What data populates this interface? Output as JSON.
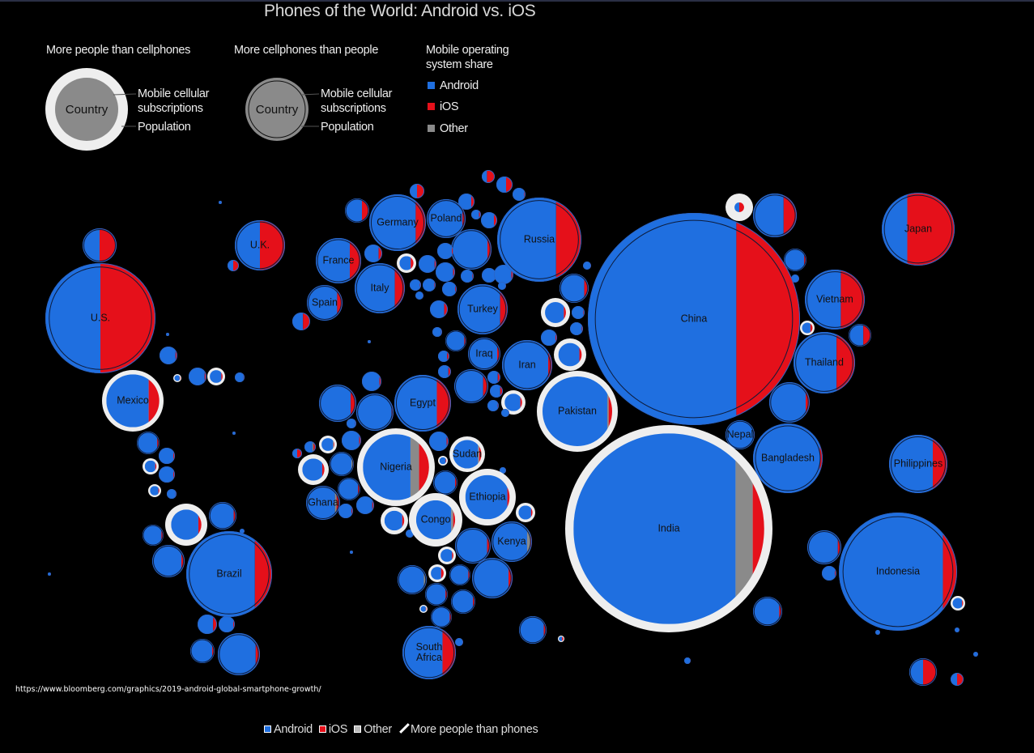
{
  "title": "Phones of the World: Android vs. iOS",
  "legend": {
    "people_more": {
      "heading": "More people than cellphones",
      "sample": "Country",
      "outer_label": "Mobile cellular subscriptions",
      "inner_label": "Population"
    },
    "phones_more": {
      "heading": "More cellphones than people",
      "sample": "Country",
      "outer_label": "Mobile cellular subscriptions",
      "inner_label": "Population"
    },
    "os": {
      "heading_1": "Mobile operating",
      "heading_2": "system share",
      "android": "Android",
      "ios": "iOS",
      "other": "Other"
    }
  },
  "colors": {
    "android": "#1f6fe0",
    "ios": "#e5101a",
    "other": "#8a8a8a",
    "ring": "#eeeeee",
    "background": "#000000"
  },
  "source": "https://www.bloomberg.com/graphics/2019-android-global-smartphone-growth/",
  "bottom_legend": {
    "android": "Android",
    "ios": "iOS",
    "other": "Other",
    "people": "More people than phones"
  },
  "chart_data": {
    "type": "bubble-map",
    "title": "Phones of the World: Android vs. iOS",
    "countries": [
      {
        "name": "U.S.",
        "android": 0.5,
        "ios": 0.5,
        "other": 0,
        "more_people_than_phones": false
      },
      {
        "name": "U.K.",
        "android": 0.5,
        "ios": 0.5,
        "other": 0,
        "more_people_than_phones": false
      },
      {
        "name": "Mexico",
        "android": 0.8,
        "ios": 0.2,
        "other": 0,
        "more_people_than_phones": true
      },
      {
        "name": "Brazil",
        "android": 0.8,
        "ios": 0.2,
        "other": 0,
        "more_people_than_phones": false
      },
      {
        "name": "Germany",
        "android": 0.82,
        "ios": 0.18,
        "other": 0,
        "more_people_than_phones": false
      },
      {
        "name": "Poland",
        "android": 0.92,
        "ios": 0.08,
        "other": 0,
        "more_people_than_phones": false
      },
      {
        "name": "France",
        "android": 0.75,
        "ios": 0.25,
        "other": 0,
        "more_people_than_phones": false
      },
      {
        "name": "Spain",
        "android": 0.85,
        "ios": 0.15,
        "other": 0,
        "more_people_than_phones": false
      },
      {
        "name": "Italy",
        "android": 0.8,
        "ios": 0.2,
        "other": 0,
        "more_people_than_phones": false
      },
      {
        "name": "Russia",
        "android": 0.7,
        "ios": 0.3,
        "other": 0,
        "more_people_than_phones": false
      },
      {
        "name": "Turkey",
        "android": 0.85,
        "ios": 0.15,
        "other": 0,
        "more_people_than_phones": false
      },
      {
        "name": "Iraq",
        "android": 0.9,
        "ios": 0.1,
        "other": 0,
        "more_people_than_phones": false
      },
      {
        "name": "Iran",
        "android": 0.92,
        "ios": 0.08,
        "other": 0,
        "more_people_than_phones": false
      },
      {
        "name": "Egypt",
        "android": 0.75,
        "ios": 0.25,
        "other": 0,
        "more_people_than_phones": false
      },
      {
        "name": "Pakistan",
        "android": 0.93,
        "ios": 0.05,
        "other": 0.02,
        "more_people_than_phones": true
      },
      {
        "name": "China",
        "android": 0.7,
        "ios": 0.3,
        "other": 0,
        "more_people_than_phones": false
      },
      {
        "name": "Japan",
        "android": 0.35,
        "ios": 0.65,
        "other": 0,
        "more_people_than_phones": false
      },
      {
        "name": "Vietnam",
        "android": 0.6,
        "ios": 0.4,
        "other": 0,
        "more_people_than_phones": false
      },
      {
        "name": "Thailand",
        "android": 0.7,
        "ios": 0.3,
        "other": 0,
        "more_people_than_phones": false
      },
      {
        "name": "Nepal",
        "android": 0.97,
        "ios": 0.03,
        "other": 0,
        "more_people_than_phones": false
      },
      {
        "name": "Bangladesh",
        "android": 0.96,
        "ios": 0.04,
        "other": 0,
        "more_people_than_phones": false
      },
      {
        "name": "Philippines",
        "android": 0.75,
        "ios": 0.25,
        "other": 0,
        "more_people_than_phones": false
      },
      {
        "name": "India",
        "android": 0.85,
        "ios": 0.06,
        "other": 0.09,
        "more_people_than_phones": true
      },
      {
        "name": "Indonesia",
        "android": 0.88,
        "ios": 0.12,
        "other": 0,
        "more_people_than_phones": false
      },
      {
        "name": "Nigeria",
        "android": 0.72,
        "ios": 0.15,
        "other": 0.13,
        "more_people_than_phones": true
      },
      {
        "name": "Sudan",
        "android": 0.88,
        "ios": 0.08,
        "other": 0.04,
        "more_people_than_phones": true
      },
      {
        "name": "Ethiopia",
        "android": 0.95,
        "ios": 0.05,
        "other": 0,
        "more_people_than_phones": true
      },
      {
        "name": "Congo",
        "android": 0.9,
        "ios": 0.05,
        "other": 0.05,
        "more_people_than_phones": true
      },
      {
        "name": "Kenya",
        "android": 0.88,
        "ios": 0.04,
        "other": 0.08,
        "more_people_than_phones": false
      },
      {
        "name": "Ghana",
        "android": 0.85,
        "ios": 0.1,
        "other": 0.05,
        "more_people_than_phones": false
      },
      {
        "name": "South Africa",
        "android": 0.75,
        "ios": 0.25,
        "other": 0,
        "more_people_than_phones": false
      }
    ],
    "unlabeled": [
      [
        0.5,
        0.5,
        0,
        0
      ],
      [
        0.7,
        0.3,
        0,
        0
      ],
      [
        0.5,
        0.5,
        0,
        0
      ],
      [
        0.4,
        0.6,
        0,
        0
      ],
      [
        0.6,
        0.4,
        0,
        0
      ],
      [
        0.9,
        0.1,
        0,
        0
      ],
      [
        0.8,
        0.2,
        0,
        0
      ],
      [
        0.8,
        0.2,
        0,
        0
      ],
      [
        0.8,
        0.2,
        0,
        0
      ],
      [
        0.9,
        0.1,
        0,
        0
      ],
      [
        0.8,
        0.2,
        0,
        0
      ],
      [
        0.8,
        0.2,
        0,
        1
      ],
      [
        0.9,
        0.1,
        0,
        0
      ],
      [
        0.9,
        0.1,
        0,
        0
      ],
      [
        0.9,
        0.1,
        0,
        0
      ],
      [
        0.9,
        0.1,
        0,
        0
      ],
      [
        0.9,
        0.1,
        0,
        0
      ],
      [
        0.9,
        0.1,
        0,
        0
      ],
      [
        0.9,
        0.1,
        0,
        0
      ],
      [
        0.9,
        0.1,
        0,
        0
      ],
      [
        0.9,
        0.1,
        0,
        0
      ],
      [
        0.9,
        0.1,
        0,
        0
      ],
      [
        0.9,
        0.1,
        0,
        0
      ],
      [
        0.8,
        0.2,
        0,
        0
      ],
      [
        0.6,
        0.4,
        0,
        0
      ],
      [
        0.5,
        0.5,
        0,
        0
      ],
      [
        0.9,
        0.1,
        0,
        0
      ],
      [
        0.9,
        0.1,
        0,
        0
      ],
      [
        0.8,
        0.2,
        0,
        0
      ],
      [
        0.8,
        0.2,
        0,
        0
      ],
      [
        0.85,
        0.15,
        0,
        0
      ],
      [
        0.8,
        0.2,
        0,
        0
      ],
      [
        0.8,
        0.2,
        0,
        0
      ],
      [
        0.9,
        0.1,
        0,
        1
      ],
      [
        0.9,
        0.1,
        0,
        0
      ],
      [
        0.9,
        0.1,
        0,
        0
      ],
      [
        0.9,
        0.1,
        0,
        1
      ],
      [
        0.9,
        0.1,
        0,
        1
      ],
      [
        0.9,
        0.1,
        0,
        0
      ],
      [
        0.9,
        0.1,
        0,
        0
      ],
      [
        0.9,
        0.1,
        0,
        0
      ],
      [
        0.85,
        0.15,
        0,
        0
      ],
      [
        0.9,
        0.1,
        0,
        0
      ],
      [
        0.5,
        0.5,
        0,
        1
      ],
      [
        0.7,
        0.3,
        0,
        0
      ],
      [
        0.9,
        0.1,
        0,
        0
      ],
      [
        0.9,
        0.1,
        0,
        0
      ],
      [
        0.8,
        0.2,
        0,
        1
      ],
      [
        0.65,
        0.35,
        0,
        0
      ],
      [
        0.9,
        0.1,
        0,
        0
      ],
      [
        0.85,
        0.15,
        0,
        0
      ],
      [
        0.95,
        0.05,
        0,
        0
      ],
      [
        0.9,
        0.1,
        0,
        0
      ],
      [
        0.9,
        0.1,
        0,
        0
      ],
      [
        0.9,
        0.1,
        0,
        0
      ],
      [
        0.9,
        0.1,
        0,
        1
      ],
      [
        0.7,
        0.2,
        0.1,
        0
      ],
      [
        0.9,
        0.05,
        0.05,
        1
      ],
      [
        0.9,
        0.1,
        0,
        1
      ],
      [
        0.9,
        0.05,
        0.05,
        0
      ],
      [
        0.9,
        0.1,
        0,
        0
      ],
      [
        0.9,
        0,
        0.1,
        0
      ],
      [
        0.9,
        0.1,
        0,
        0
      ],
      [
        0.9,
        0.1,
        0,
        0
      ],
      [
        0.9,
        0.1,
        0,
        0
      ],
      [
        0.9,
        0.1,
        0,
        1
      ],
      [
        0.9,
        0.1,
        0,
        0
      ],
      [
        0.9,
        0.1,
        0,
        0
      ],
      [
        0.9,
        0.1,
        0,
        1
      ],
      [
        0.9,
        0.1,
        0,
        1
      ],
      [
        0.9,
        0.1,
        0,
        0
      ],
      [
        0.9,
        0.1,
        0,
        0
      ],
      [
        0.9,
        0.1,
        0,
        1
      ],
      [
        0.9,
        0.1,
        0,
        0
      ],
      [
        0.9,
        0,
        0.1,
        0
      ],
      [
        0.8,
        0.2,
        0,
        1
      ],
      [
        0.9,
        0.1,
        0,
        0
      ],
      [
        0.9,
        0.1,
        0,
        0
      ],
      [
        0.9,
        0.1,
        0,
        0
      ],
      [
        0.9,
        0.1,
        0,
        1
      ],
      [
        0.9,
        0.1,
        0,
        0
      ],
      [
        0.9,
        0.1,
        0,
        0
      ],
      [
        0.9,
        0.1,
        0,
        0
      ],
      [
        0.7,
        0.3,
        0,
        1
      ],
      [
        0.9,
        0.1,
        0,
        0
      ],
      [
        0.9,
        0.1,
        0,
        0
      ],
      [
        0.9,
        0.1,
        0,
        1
      ],
      [
        0.9,
        0.1,
        0,
        0
      ],
      [
        0.9,
        0.1,
        0,
        1
      ],
      [
        0.9,
        0.1,
        0,
        0
      ],
      [
        0.5,
        0.5,
        0,
        0
      ],
      [
        0.9,
        0.1,
        0,
        0
      ],
      [
        0.9,
        0.1,
        0,
        0
      ],
      [
        0.9,
        0.1,
        0,
        1
      ],
      [
        0.9,
        0.1,
        0,
        0
      ],
      [
        0.9,
        0.1,
        0,
        1
      ],
      [
        0.9,
        0.1,
        0,
        0
      ],
      [
        0.9,
        0.1,
        0,
        1
      ],
      [
        0.9,
        0.1,
        0,
        0
      ],
      [
        0.9,
        0.1,
        0,
        0
      ],
      [
        0.9,
        0.1,
        0,
        0
      ],
      [
        0.9,
        0.1,
        0,
        0
      ],
      [
        0.8,
        0.2,
        0,
        0
      ],
      [
        0.9,
        0.1,
        0,
        0
      ],
      [
        0.9,
        0.1,
        0,
        0
      ],
      [
        0.9,
        0.1,
        0,
        0
      ],
      [
        0.9,
        0.1,
        0,
        0
      ],
      [
        0.9,
        0.1,
        0,
        0
      ],
      [
        0.9,
        0.1,
        0,
        0
      ],
      [
        0.9,
        0.1,
        0,
        0
      ],
      [
        0.9,
        0.1,
        0,
        0
      ],
      [
        0.9,
        0.1,
        0,
        0
      ],
      [
        0.9,
        0.1,
        0,
        0
      ],
      [
        0.9,
        0.1,
        0,
        0
      ],
      [
        0.9,
        0.1,
        0,
        1
      ],
      [
        0.5,
        0.5,
        0,
        0
      ],
      [
        0.5,
        0.5,
        0,
        0
      ],
      [
        0.9,
        0.1,
        0,
        0
      ],
      [
        0.9,
        0.1,
        0,
        0
      ],
      [
        0.9,
        0.1,
        0,
        0
      ],
      [
        0.9,
        0.1,
        0,
        0
      ]
    ]
  }
}
